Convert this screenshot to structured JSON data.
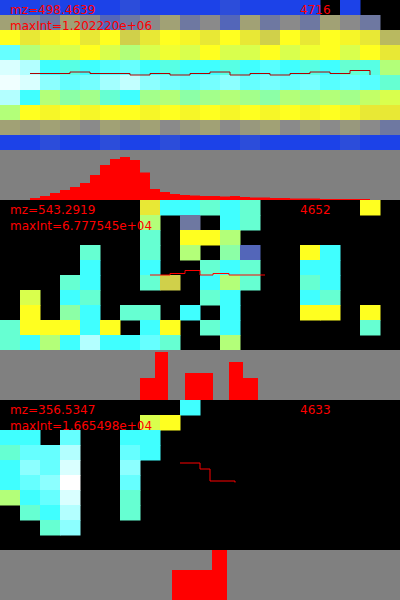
{
  "chart_data": [
    {
      "type": "heatmap",
      "title": "mz=498.4639",
      "subtitle": "maxInt=1.202220e+06",
      "annotation": "4716",
      "xlim": [
        0,
        20
      ],
      "ylim": [
        0,
        10
      ],
      "tick_labels": false,
      "color_range": [
        0,
        100
      ],
      "cells": [
        [
          5,
          5,
          8,
          5,
          5,
          5,
          8,
          5,
          5,
          5,
          5,
          8,
          5,
          5,
          5,
          5,
          null,
          5,
          null,
          null
        ],
        [
          30,
          25,
          20,
          30,
          25,
          15,
          20,
          25,
          30,
          20,
          25,
          15,
          30,
          20,
          25,
          20,
          30,
          25,
          20,
          null
        ],
        [
          50,
          45,
          48,
          50,
          45,
          50,
          40,
          45,
          50,
          48,
          45,
          50,
          45,
          40,
          50,
          45,
          50,
          48,
          45,
          35
        ],
        [
          80,
          60,
          55,
          55,
          50,
          55,
          60,
          55,
          52,
          55,
          50,
          55,
          55,
          50,
          55,
          52,
          50,
          55,
          50,
          45
        ],
        [
          95,
          90,
          75,
          72,
          75,
          78,
          80,
          75,
          72,
          75,
          75,
          72,
          75,
          78,
          75,
          72,
          75,
          70,
          72,
          60
        ],
        [
          98,
          95,
          85,
          80,
          82,
          88,
          92,
          85,
          82,
          80,
          82,
          85,
          80,
          82,
          80,
          82,
          78,
          80,
          78,
          70
        ],
        [
          90,
          75,
          60,
          65,
          62,
          70,
          75,
          62,
          60,
          65,
          62,
          60,
          62,
          65,
          60,
          62,
          60,
          62,
          58,
          55
        ],
        [
          60,
          50,
          48,
          50,
          48,
          50,
          50,
          48,
          50,
          48,
          50,
          48,
          50,
          48,
          50,
          48,
          50,
          48,
          45,
          45
        ],
        [
          30,
          28,
          30,
          28,
          25,
          30,
          28,
          30,
          25,
          28,
          30,
          25,
          28,
          30,
          25,
          28,
          25,
          28,
          25,
          20
        ],
        [
          5,
          5,
          8,
          5,
          5,
          8,
          5,
          5,
          8,
          5,
          5,
          5,
          8,
          5,
          5,
          5,
          5,
          8,
          5,
          5
        ]
      ],
      "line": {
        "x": [
          1.5,
          2.5,
          3.5,
          4.5,
          5.5,
          6.5,
          7.5,
          8.5,
          9.5,
          10.5,
          11.5,
          12.5,
          13.5,
          14.5,
          15.5,
          16.5,
          17.5,
          18.5
        ],
        "y": [
          5.1,
          5.1,
          5.2,
          5.1,
          5.1,
          5.0,
          5.1,
          5.0,
          5.1,
          5.2,
          5.0,
          5.1,
          5.0,
          5.1,
          5.2,
          5.1,
          5.3,
          5.0
        ],
        "color": "#b00000",
        "line_style": "step"
      },
      "histogram": {
        "bins": [
          1.5,
          2,
          2.5,
          3,
          3.5,
          4,
          4.5,
          5,
          5.5,
          6,
          6.5,
          7,
          7.5,
          8,
          8.5,
          9,
          9.5,
          10,
          10.5,
          11,
          11.5,
          12,
          12.5,
          13,
          13.5,
          14,
          14.5,
          15,
          15.5,
          16,
          16.5,
          17,
          17.5,
          18,
          18.5
        ],
        "counts": [
          0.4,
          0.8,
          1.4,
          2.0,
          2.6,
          3.4,
          5.0,
          7.0,
          8.2,
          8.6,
          8.0,
          5.5,
          2.2,
          1.6,
          1.2,
          1.0,
          0.9,
          0.8,
          0.8,
          0.7,
          0.8,
          0.6,
          0.5,
          0.5,
          0.4,
          0.4,
          0.3,
          0.3,
          0.3,
          0.2,
          0.2,
          0.2,
          0.2,
          0.2
        ],
        "color": "#ff0000",
        "ylim": [
          0,
          10
        ]
      }
    },
    {
      "type": "heatmap",
      "title": "mz=543.2919",
      "subtitle": "maxInt=6.777545e+04",
      "annotation": "4652",
      "xlim": [
        0,
        20
      ],
      "ylim": [
        0,
        10
      ],
      "tick_labels": false,
      "color_range": [
        0,
        100
      ],
      "cells": [
        [
          null,
          null,
          null,
          null,
          null,
          null,
          null,
          45,
          75,
          75,
          70,
          75,
          70,
          null,
          null,
          null,
          null,
          null,
          50,
          null
        ],
        [
          null,
          null,
          null,
          null,
          null,
          null,
          null,
          60,
          null,
          20,
          null,
          75,
          70,
          null,
          null,
          null,
          null,
          null,
          null,
          null
        ],
        [
          null,
          null,
          null,
          null,
          null,
          null,
          null,
          70,
          null,
          50,
          50,
          60,
          null,
          null,
          null,
          null,
          null,
          null,
          null,
          null
        ],
        [
          null,
          null,
          null,
          null,
          70,
          null,
          null,
          70,
          null,
          60,
          null,
          65,
          15,
          null,
          null,
          50,
          75,
          null,
          null,
          null
        ],
        [
          null,
          null,
          null,
          null,
          75,
          null,
          null,
          75,
          null,
          null,
          70,
          75,
          70,
          null,
          null,
          75,
          75,
          null,
          null,
          null
        ],
        [
          null,
          null,
          null,
          70,
          75,
          null,
          null,
          70,
          40,
          null,
          75,
          60,
          70,
          null,
          null,
          70,
          75,
          null,
          null,
          null
        ],
        [
          null,
          55,
          null,
          75,
          70,
          null,
          null,
          null,
          null,
          null,
          70,
          75,
          null,
          null,
          null,
          75,
          70,
          null,
          null,
          null
        ],
        [
          null,
          50,
          null,
          65,
          75,
          null,
          70,
          70,
          null,
          75,
          null,
          75,
          null,
          null,
          null,
          50,
          50,
          null,
          50,
          null
        ],
        [
          70,
          50,
          50,
          50,
          75,
          50,
          null,
          75,
          50,
          null,
          70,
          75,
          null,
          null,
          null,
          null,
          null,
          null,
          70,
          null
        ],
        [
          70,
          75,
          60,
          75,
          90,
          75,
          75,
          80,
          70,
          null,
          null,
          60,
          null,
          null,
          null,
          null,
          null,
          null,
          null,
          null
        ]
      ],
      "line": {
        "x": [
          7.5,
          8.5,
          9.25,
          10,
          10.65,
          11.45,
          12.15,
          13.25
        ],
        "y": [
          5.0,
          5.1,
          5.3,
          5.0,
          5.1,
          5.0,
          5.0,
          5.0
        ],
        "color": "#ff0000",
        "line_style": "step"
      },
      "histogram": {
        "bins": [
          7,
          7.75,
          8.4,
          9.25,
          10.65,
          11.45,
          12.15,
          12.9
        ],
        "counts": [
          4.4,
          9.6,
          0,
          5.4,
          0,
          7.6,
          4.4
        ],
        "color": "#ff0000",
        "ylim": [
          0,
          10
        ]
      }
    },
    {
      "type": "heatmap",
      "title": "mz=356.5347",
      "subtitle": "maxInt=1.665498e+04",
      "annotation": "4633",
      "xlim": [
        0,
        20
      ],
      "ylim": [
        0,
        10
      ],
      "tick_labels": false,
      "color_range": [
        0,
        100
      ],
      "cells": [
        [
          null,
          null,
          null,
          null,
          null,
          null,
          null,
          null,
          null,
          75,
          null,
          null,
          null,
          null,
          null,
          null,
          null,
          null,
          null,
          null
        ],
        [
          null,
          null,
          null,
          null,
          null,
          null,
          null,
          55,
          50,
          null,
          null,
          null,
          null,
          null,
          null,
          null,
          null,
          null,
          null,
          null
        ],
        [
          75,
          75,
          null,
          80,
          null,
          null,
          75,
          75,
          null,
          null,
          null,
          null,
          null,
          null,
          null,
          null,
          null,
          null,
          null,
          null
        ],
        [
          70,
          80,
          80,
          90,
          null,
          null,
          80,
          75,
          null,
          null,
          null,
          null,
          null,
          null,
          null,
          null,
          null,
          null,
          null,
          null
        ],
        [
          75,
          85,
          80,
          95,
          null,
          null,
          85,
          null,
          null,
          null,
          null,
          null,
          null,
          null,
          null,
          null,
          null,
          null,
          null,
          null
        ],
        [
          75,
          80,
          85,
          100,
          null,
          null,
          80,
          null,
          null,
          null,
          null,
          null,
          null,
          null,
          null,
          null,
          null,
          null,
          null,
          null
        ],
        [
          60,
          75,
          80,
          95,
          null,
          null,
          70,
          null,
          null,
          null,
          null,
          null,
          null,
          null,
          null,
          null,
          null,
          null,
          null,
          null
        ],
        [
          null,
          70,
          75,
          90,
          null,
          null,
          70,
          null,
          null,
          null,
          null,
          null,
          null,
          null,
          null,
          null,
          null,
          null,
          null,
          null
        ],
        [
          null,
          null,
          70,
          85,
          null,
          null,
          null,
          null,
          null,
          null,
          null,
          null,
          null,
          null,
          null,
          null,
          null,
          null,
          null,
          null
        ],
        [
          null,
          null,
          null,
          null,
          null,
          null,
          null,
          null,
          null,
          null,
          null,
          null,
          null,
          null,
          null,
          null,
          null,
          null,
          null,
          null
        ]
      ],
      "line": {
        "x": [
          9,
          10,
          10.5,
          11.75
        ],
        "y": [
          5.8,
          5.4,
          4.6,
          4.5
        ],
        "color": "#ff0000",
        "line_style": "step"
      },
      "histogram": {
        "bins": [
          8.6,
          10.6,
          11.35
        ],
        "counts": [
          6,
          10
        ],
        "color": "#ff0000",
        "ylim": [
          0,
          10
        ]
      }
    }
  ]
}
